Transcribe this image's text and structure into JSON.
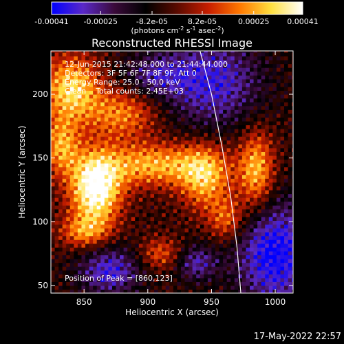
{
  "chart_data": {
    "type": "heatmap",
    "title": "Reconstructed RHESSI Image",
    "xlabel": "Heliocentric X (arcsec)",
    "ylabel": "Heliocentric Y (arcsec)",
    "xlim": [
      824,
      1014
    ],
    "ylim": [
      44,
      234
    ],
    "x_ticks": [
      "850",
      "900",
      "950",
      "1000"
    ],
    "x_tick_values": [
      850,
      900,
      950,
      1000
    ],
    "y_ticks": [
      "50",
      "100",
      "150",
      "200"
    ],
    "y_tick_values": [
      50,
      100,
      150,
      200
    ],
    "colorbar": {
      "min": -0.00041,
      "max": 0.00041,
      "tick_labels": [
        "-0.00041",
        "-0.00025",
        "-8.2e-05",
        "8.2e-05",
        "0.00025",
        "0.00041"
      ],
      "tick_values": [
        -0.00041,
        -0.00025,
        -8.2e-05,
        8.2e-05,
        0.00025,
        0.00041
      ],
      "units_label": "(photons cm",
      "units_exp1": "-2",
      "units_mid": " s",
      "units_exp2": "-1",
      "units_mid2": " asec",
      "units_exp3": "-2",
      "units_end": ")",
      "colors": [
        "#0000ff",
        "#5a28c8",
        "#3a0a3a",
        "#000000",
        "#5a0a00",
        "#c81e00",
        "#ff7800",
        "#ffe040",
        "#ffffff"
      ]
    },
    "info_lines": [
      "12-Jun-2015 21:42:48.000 to 21:44:44.000",
      "Detectors: 3F 5F 6F 7F 8F 9F, Att 0",
      "Energy Range: 25.0 - 50.0 keV",
      "Clean    Total counts: 2.45E+03"
    ],
    "peak_label": "Position of Peak = [860,123]",
    "peak": [
      860,
      123
    ],
    "sources": [
      {
        "x": 859,
        "y": 126,
        "sx": 14,
        "sy": 20,
        "amp": 1.0
      },
      {
        "x": 840,
        "y": 205,
        "sx": 16,
        "sy": 18,
        "amp": 0.72
      },
      {
        "x": 880,
        "y": 185,
        "sx": 20,
        "sy": 14,
        "amp": 0.5
      },
      {
        "x": 905,
        "y": 145,
        "sx": 30,
        "sy": 12,
        "amp": 0.62
      },
      {
        "x": 945,
        "y": 135,
        "sx": 14,
        "sy": 18,
        "amp": 0.6
      },
      {
        "x": 985,
        "y": 140,
        "sx": 10,
        "sy": 22,
        "amp": 0.66
      },
      {
        "x": 962,
        "y": 102,
        "sx": 10,
        "sy": 12,
        "amp": 0.45
      },
      {
        "x": 910,
        "y": 75,
        "sx": 12,
        "sy": 9,
        "amp": 0.4
      },
      {
        "x": 832,
        "y": 160,
        "sx": 10,
        "sy": 16,
        "amp": 0.55
      },
      {
        "x": 850,
        "y": 92,
        "sx": 14,
        "sy": 9,
        "amp": 0.45
      }
    ],
    "negatives": [
      {
        "x": 950,
        "y": 210,
        "sx": 28,
        "sy": 26,
        "amp": 0.55
      },
      {
        "x": 1000,
        "y": 75,
        "sx": 22,
        "sy": 30,
        "amp": 0.7
      },
      {
        "x": 870,
        "y": 62,
        "sx": 18,
        "sy": 14,
        "amp": 0.55
      },
      {
        "x": 938,
        "y": 68,
        "sx": 12,
        "sy": 10,
        "amp": 0.45
      },
      {
        "x": 905,
        "y": 215,
        "sx": 18,
        "sy": 12,
        "amp": 0.35
      }
    ],
    "limb_curve": [
      [
        941,
        234
      ],
      [
        950,
        200
      ],
      [
        958,
        160
      ],
      [
        965,
        120
      ],
      [
        970,
        80
      ],
      [
        973,
        44
      ]
    ],
    "grid": false
  },
  "footer": {
    "date": "17-May-2022 22:57"
  }
}
